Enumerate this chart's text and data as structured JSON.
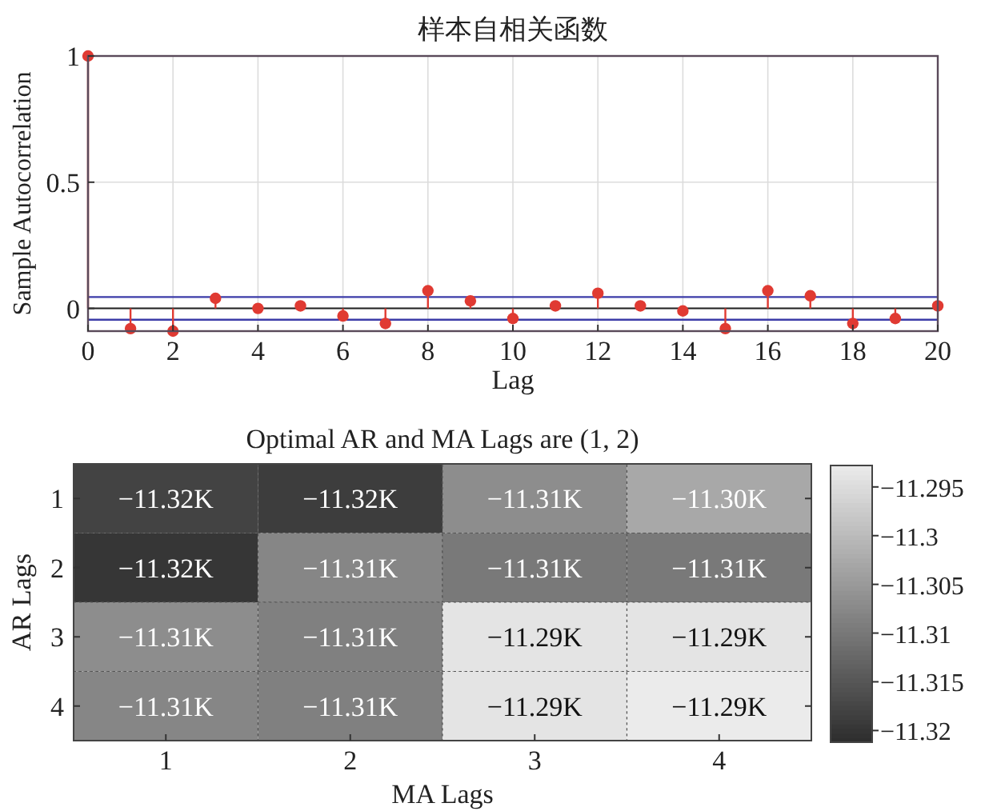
{
  "chart_data": [
    {
      "type": "lollipop",
      "title": "样本自相关函数",
      "xlabel": "Lag",
      "ylabel": "Sample Autocorrelation",
      "x": [
        0,
        1,
        2,
        3,
        4,
        5,
        6,
        7,
        8,
        9,
        10,
        11,
        12,
        13,
        14,
        15,
        16,
        17,
        18,
        19,
        20
      ],
      "values": [
        1,
        -0.08,
        -0.09,
        0.04,
        0,
        0.01,
        -0.03,
        -0.06,
        0.07,
        0.03,
        -0.04,
        0.01,
        0.06,
        0.01,
        -0.01,
        -0.08,
        0.07,
        0.05,
        -0.06,
        -0.04,
        0.01
      ],
      "color": "#e03a32",
      "marker": "circle",
      "xlim": [
        0,
        20
      ],
      "ylim": [
        -0.09,
        1
      ],
      "xticks": [
        0,
        2,
        4,
        6,
        8,
        10,
        12,
        14,
        16,
        18,
        20
      ],
      "yticks": [
        0,
        0.5,
        1
      ],
      "grid": true,
      "ref_lines": [
        {
          "axis": "y",
          "value": 0.045,
          "color": "#3c3ca8"
        },
        {
          "axis": "y",
          "value": -0.045,
          "color": "#3c3ca8"
        }
      ]
    },
    {
      "type": "heatmap",
      "title": "Optimal AR and MA Lags are (1, 2)",
      "xlabel": "MA Lags",
      "ylabel": "AR Lags",
      "categories": [
        "1",
        "2",
        "3",
        "4"
      ],
      "y_categories": [
        "1",
        "2",
        "3",
        "4"
      ],
      "cells": [
        [
          -11.318,
          -11.319,
          -11.307,
          -11.303
        ],
        [
          -11.32,
          -11.308,
          -11.31,
          -11.31
        ],
        [
          -11.307,
          -11.309,
          -11.294,
          -11.294
        ],
        [
          -11.308,
          -11.309,
          -11.294,
          -11.293
        ]
      ],
      "cell_labels": [
        [
          "−11.32K",
          "−11.32K",
          "−11.31K",
          "−11.30K"
        ],
        [
          "−11.32K",
          "−11.31K",
          "−11.31K",
          "−11.31K"
        ],
        [
          "−11.31K",
          "−11.31K",
          "−11.29K",
          "−11.29K"
        ],
        [
          "−11.31K",
          "−11.31K",
          "−11.29K",
          "−11.29K"
        ]
      ],
      "clim": [
        -11.3212,
        -11.2928
      ],
      "cticks": [
        {
          "value": -11.32,
          "label": "−11.32"
        },
        {
          "value": -11.315,
          "label": "−11.315"
        },
        {
          "value": -11.31,
          "label": "−11.31"
        },
        {
          "value": -11.305,
          "label": "−11.305"
        },
        {
          "value": -11.3,
          "label": "−11.3"
        },
        {
          "value": -11.295,
          "label": "−11.295"
        }
      ]
    }
  ]
}
